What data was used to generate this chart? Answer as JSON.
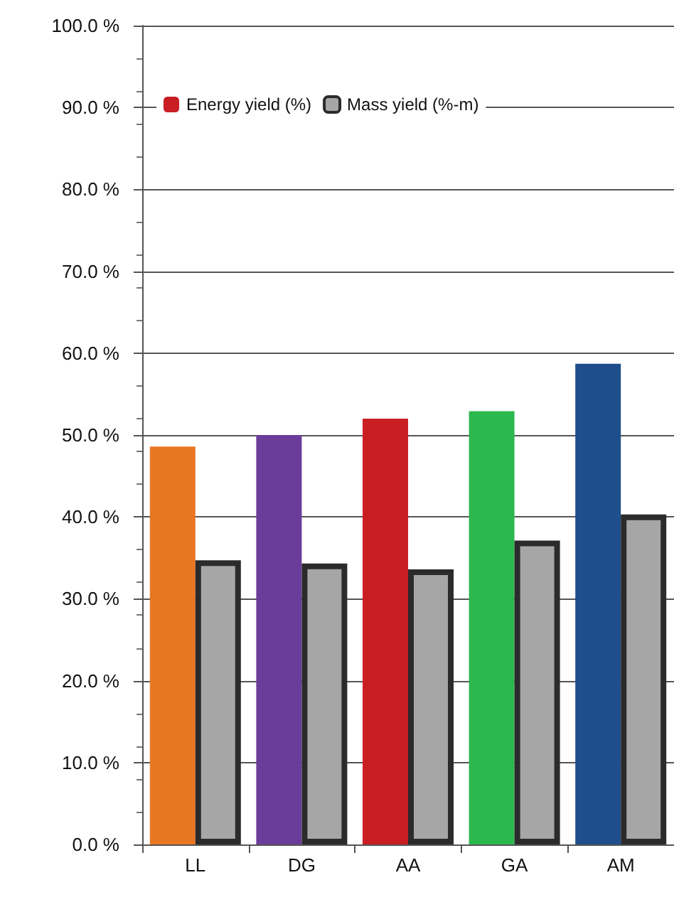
{
  "chart_data": {
    "type": "bar",
    "categories": [
      "LL",
      "DG",
      "AA",
      "GA",
      "AM"
    ],
    "series": [
      {
        "name": "Energy yield (%)",
        "color": "#c81e24",
        "colors": [
          "#e87722",
          "#6a3d9a",
          "#c81e24",
          "#2db84d",
          "#1f4e8c"
        ],
        "values": [
          48.6,
          50.0,
          52.0,
          52.9,
          58.7
        ]
      },
      {
        "name": "Mass yield (%-m)",
        "color": "#a6a6a6",
        "values": [
          34.7,
          34.3,
          33.6,
          37.1,
          40.3
        ]
      }
    ],
    "ylim": [
      0,
      100
    ],
    "yticks": [
      {
        "value": 0,
        "label": "0.0 %"
      },
      {
        "value": 10,
        "label": "10.0 %"
      },
      {
        "value": 20,
        "label": "20.0 %"
      },
      {
        "value": 30,
        "label": "30.0 %"
      },
      {
        "value": 40,
        "label": "40.0 %"
      },
      {
        "value": 50,
        "label": "50.0 %"
      },
      {
        "value": 60,
        "label": "60.0 %"
      },
      {
        "value": 70,
        "label": "70.0 %"
      },
      {
        "value": 80,
        "label": "80.0 %"
      },
      {
        "value": 90,
        "label": "90.0 %"
      },
      {
        "value": 100,
        "label": "100.0 %"
      }
    ],
    "grid": "y",
    "legend": "top left"
  }
}
